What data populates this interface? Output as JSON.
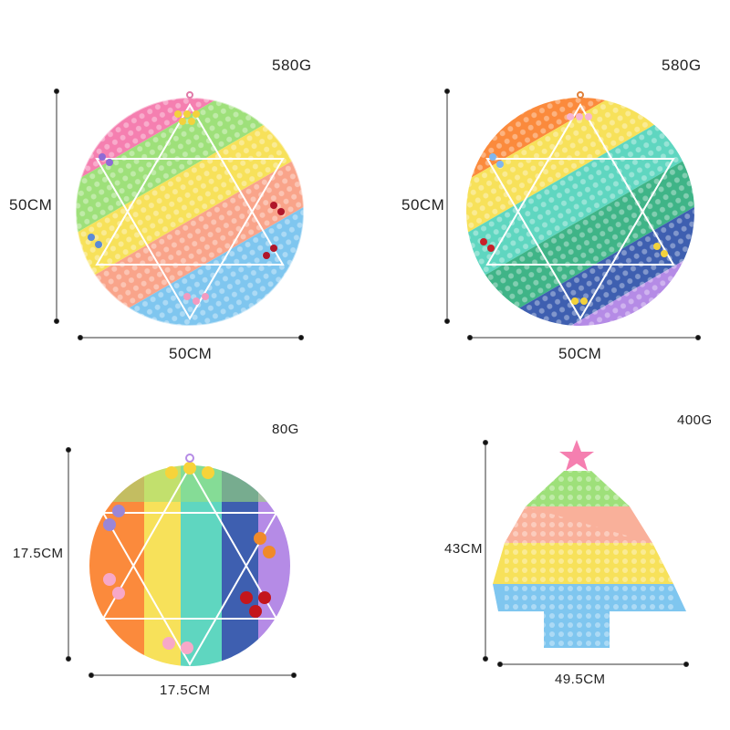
{
  "products": [
    {
      "weight": "580G",
      "height": "50CM",
      "width": "50CM"
    },
    {
      "weight": "580G",
      "height": "50CM",
      "width": "50CM"
    },
    {
      "weight": "80G",
      "height": "17.5CM",
      "width": "17.5CM"
    },
    {
      "weight": "400G",
      "height": "43CM",
      "width": "49.5CM"
    }
  ],
  "colors": {
    "pink": "#f57fb0",
    "yellow": "#f7e15a",
    "green": "#9ee07a",
    "peach": "#f9a48a",
    "blue": "#7fc6ef",
    "purple": "#b58be6",
    "orange": "#fb8a3c",
    "teal": "#5fd6c0",
    "navy": "#3e5fb0"
  }
}
